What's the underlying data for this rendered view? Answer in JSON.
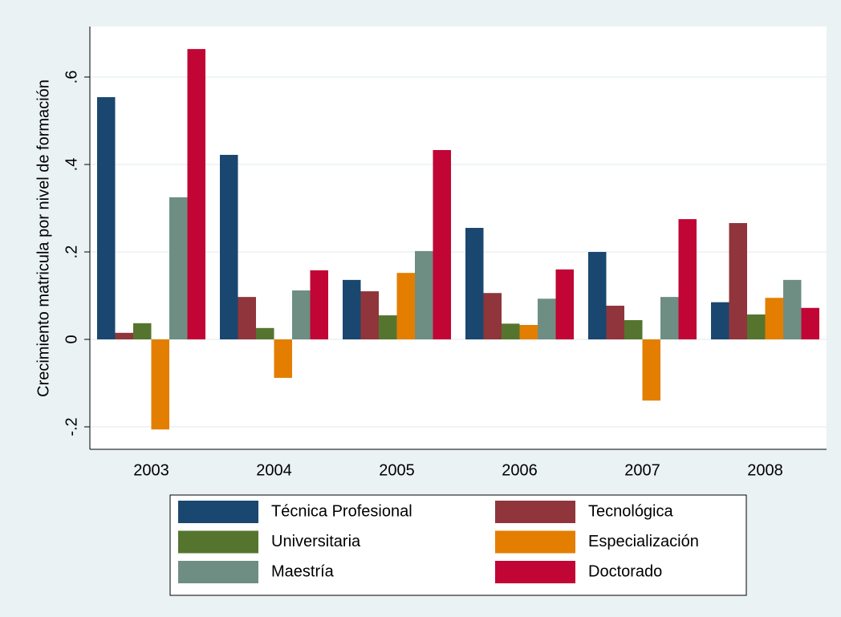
{
  "chart_data": {
    "type": "bar",
    "y_label": "Crecimiento matricula por nivel de formación",
    "categories": [
      "2003",
      "2004",
      "2005",
      "2006",
      "2007",
      "2008"
    ],
    "series": [
      {
        "name": "Técnica Profesional",
        "color": "#1a476f",
        "values": [
          0.554,
          0.422,
          0.136,
          0.255,
          0.2,
          0.085
        ]
      },
      {
        "name": "Tecnológica",
        "color": "#90353b",
        "values": [
          0.015,
          0.097,
          0.11,
          0.106,
          0.077,
          0.266
        ]
      },
      {
        "name": "Universitaria",
        "color": "#55752f",
        "values": [
          0.037,
          0.026,
          0.055,
          0.036,
          0.044,
          0.057
        ]
      },
      {
        "name": "Especialización",
        "color": "#e37e00",
        "values": [
          -0.206,
          -0.088,
          0.152,
          0.033,
          -0.14,
          0.095
        ]
      },
      {
        "name": "Maestría",
        "color": "#6e8e84",
        "values": [
          0.325,
          0.112,
          0.202,
          0.093,
          0.097,
          0.136
        ]
      },
      {
        "name": "Doctorado",
        "color": "#c10534",
        "values": [
          0.664,
          0.158,
          0.433,
          0.16,
          0.275,
          0.072
        ]
      }
    ],
    "ylim": [
      -0.2514,
      0.7156
    ],
    "yticks": [
      {
        "value": -0.2,
        "label": "-.2"
      },
      0,
      {
        "value": 0.2,
        "label": ".2"
      },
      {
        "value": 0.4,
        "label": ".4"
      },
      {
        "value": 0.6,
        "label": ".6"
      }
    ],
    "grid": true,
    "legend": "bottom"
  }
}
